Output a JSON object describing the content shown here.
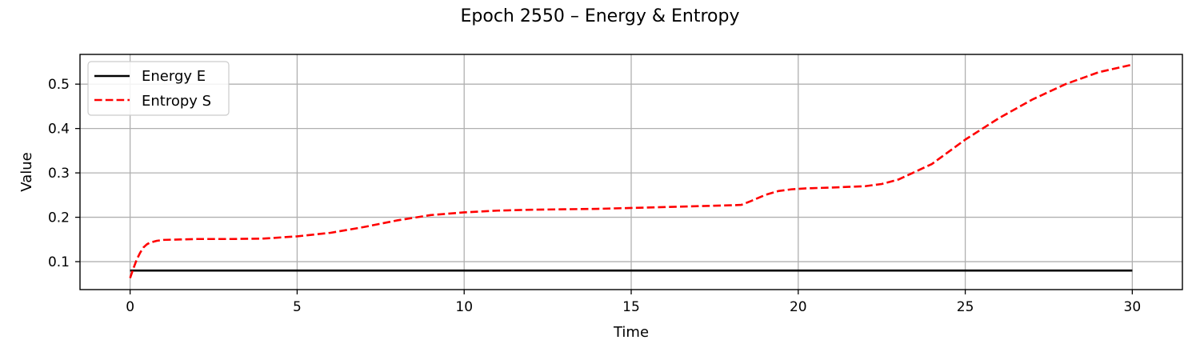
{
  "chart_data": {
    "type": "line",
    "title": "Epoch 2550 – Energy & Entropy",
    "xlabel": "Time",
    "ylabel": "Value",
    "xlim": [
      -1.5,
      31.5
    ],
    "ylim": [
      0.037,
      0.567
    ],
    "xticks": [
      0,
      5,
      10,
      15,
      20,
      25,
      30
    ],
    "yticks": [
      0.1,
      0.2,
      0.3,
      0.4,
      0.5
    ],
    "xtick_labels": [
      "0",
      "5",
      "10",
      "15",
      "20",
      "25",
      "30"
    ],
    "ytick_labels": [
      "0.1",
      "0.2",
      "0.3",
      "0.4",
      "0.5"
    ],
    "grid": true,
    "legend_position": "upper-left",
    "series": [
      {
        "name": "Energy E",
        "color": "#000000",
        "style": "solid",
        "x": [
          0,
          30
        ],
        "y": [
          0.08,
          0.08
        ]
      },
      {
        "name": "Entropy S",
        "color": "#ff0000",
        "style": "dashed",
        "x": [
          0,
          0.1,
          0.2,
          0.3,
          0.4,
          0.5,
          0.6,
          0.8,
          1.0,
          1.5,
          2,
          3,
          4,
          5,
          6,
          7,
          8,
          9,
          10,
          11,
          12,
          13,
          14,
          15,
          16,
          17,
          18,
          18.3,
          18.6,
          19,
          19.4,
          19.8,
          20.2,
          21,
          22,
          22.5,
          23,
          24,
          25,
          26,
          27,
          28,
          29,
          30
        ],
        "y": [
          0.063,
          0.085,
          0.105,
          0.12,
          0.132,
          0.139,
          0.143,
          0.147,
          0.149,
          0.15,
          0.151,
          0.151,
          0.152,
          0.157,
          0.165,
          0.178,
          0.193,
          0.205,
          0.211,
          0.215,
          0.217,
          0.218,
          0.219,
          0.221,
          0.223,
          0.225,
          0.227,
          0.228,
          0.237,
          0.25,
          0.259,
          0.263,
          0.265,
          0.267,
          0.27,
          0.275,
          0.285,
          0.32,
          0.375,
          0.423,
          0.465,
          0.5,
          0.527,
          0.544
        ]
      }
    ]
  }
}
